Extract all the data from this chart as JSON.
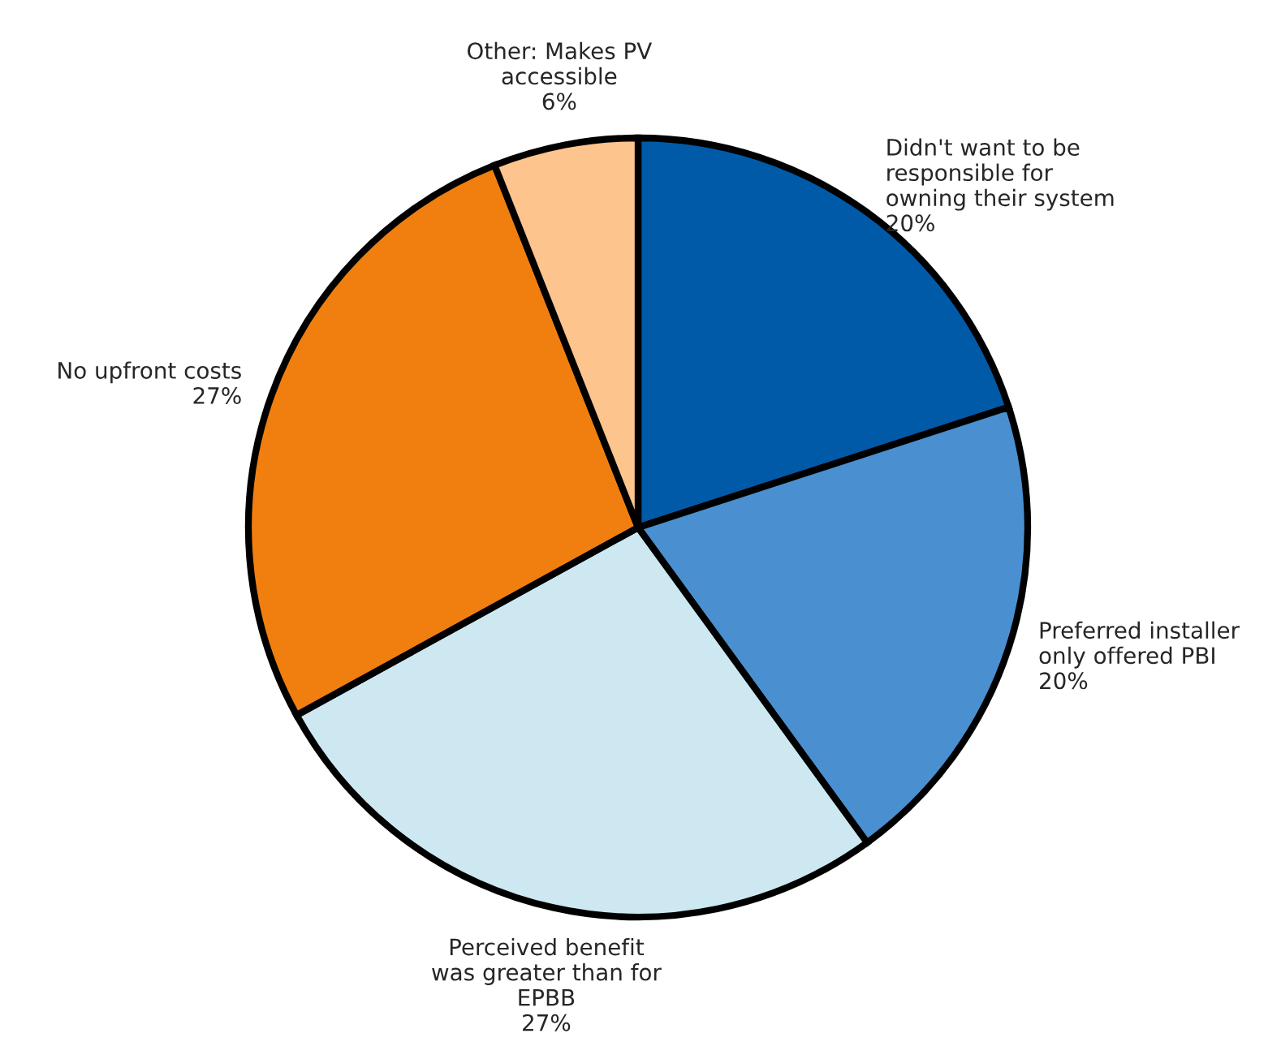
{
  "chart_data": {
    "type": "pie",
    "categories": [
      "Didn't want to be\nresponsible for\nowning their system",
      "Preferred installer\nonly offered PBI",
      "Perceived benefit\nwas greater than for\nEPBB",
      "No upfront costs",
      "Other: Makes PV\naccessible"
    ],
    "values": [
      20,
      20,
      27,
      27,
      6
    ],
    "value_labels": [
      "20%",
      "20%",
      "27%",
      "27%",
      "6%"
    ],
    "colors": [
      "#005aa8",
      "#4a90d0",
      "#cde8f0",
      "#f07f10",
      "#fdc48e"
    ]
  }
}
